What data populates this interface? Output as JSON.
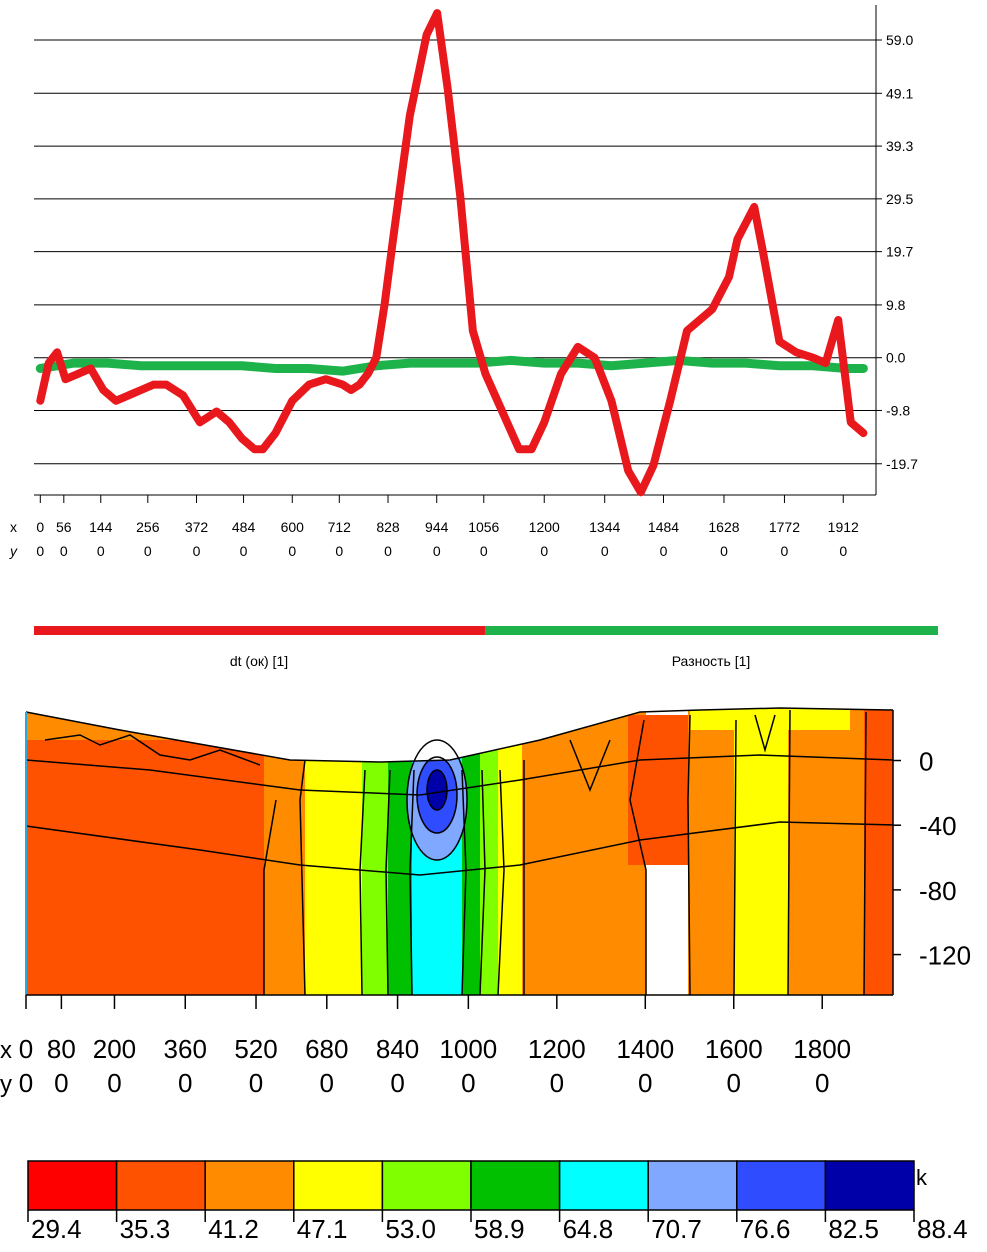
{
  "chart_data": [
    {
      "type": "line",
      "y_ticks": [
        "59.0",
        "49.1",
        "39.3",
        "29.5",
        "19.7",
        "9.8",
        "0.0",
        "-9.8",
        "-19.7"
      ],
      "ylim": [
        -25.5,
        65.5
      ],
      "xlim": [
        -15,
        1990
      ],
      "x_ticks": [
        {
          "x": "0",
          "y": "0"
        },
        {
          "x": "56",
          "y": "0"
        },
        {
          "x": "144",
          "y": "0"
        },
        {
          "x": "256",
          "y": "0"
        },
        {
          "x": "372",
          "y": "0"
        },
        {
          "x": "484",
          "y": "0"
        },
        {
          "x": "600",
          "y": "0"
        },
        {
          "x": "712",
          "y": "0"
        },
        {
          "x": "828",
          "y": "0"
        },
        {
          "x": "944",
          "y": "0"
        },
        {
          "x": "1056",
          "y": "0"
        },
        {
          "x": "1200",
          "y": "0"
        },
        {
          "x": "1344",
          "y": "0"
        },
        {
          "x": "1484",
          "y": "0"
        },
        {
          "x": "1628",
          "y": "0"
        },
        {
          "x": "1772",
          "y": "0"
        },
        {
          "x": "1912",
          "y": "0"
        }
      ],
      "x_prefix": "x",
      "y_prefix": "y",
      "grid": true,
      "series": [
        {
          "name": "dt (ок) [1]",
          "color": "#e8181c",
          "x": [
            0,
            20,
            40,
            60,
            90,
            120,
            150,
            180,
            210,
            240,
            270,
            300,
            340,
            380,
            420,
            450,
            480,
            510,
            530,
            560,
            600,
            640,
            680,
            720,
            740,
            760,
            780,
            800,
            820,
            840,
            880,
            920,
            945,
            970,
            1000,
            1030,
            1060,
            1100,
            1140,
            1170,
            1200,
            1240,
            1280,
            1320,
            1360,
            1400,
            1430,
            1460,
            1500,
            1540,
            1570,
            1600,
            1640,
            1660,
            1700,
            1720,
            1760,
            1800,
            1840,
            1870,
            1900,
            1930,
            1960
          ],
          "y": [
            -8,
            -1,
            1,
            -4,
            -3,
            -2,
            -6,
            -8,
            -7,
            -6,
            -5,
            -5,
            -7,
            -12,
            -10,
            -12,
            -15,
            -17,
            -17,
            -14,
            -8,
            -5,
            -4,
            -5,
            -6,
            -5,
            -3,
            0,
            10,
            22,
            45,
            60,
            64,
            50,
            30,
            5,
            -3,
            -10,
            -17,
            -17,
            -12,
            -3,
            2,
            0,
            -8,
            -21,
            -25,
            -20,
            -8,
            5,
            7,
            9,
            15,
            22,
            28,
            20,
            3,
            1,
            0,
            -1,
            7,
            -12,
            -14
          ]
        },
        {
          "name": "Разность [1]",
          "color": "#1db34a",
          "x": [
            0,
            40,
            80,
            160,
            240,
            320,
            400,
            480,
            560,
            640,
            720,
            800,
            880,
            960,
            1040,
            1120,
            1200,
            1280,
            1360,
            1440,
            1520,
            1600,
            1680,
            1760,
            1840,
            1920,
            1960
          ],
          "y": [
            -2,
            -1.5,
            -1,
            -1,
            -1.5,
            -1.5,
            -1.5,
            -1.5,
            -2,
            -2,
            -2.5,
            -1.5,
            -1,
            -1,
            -1,
            -0.5,
            -1,
            -1,
            -1.5,
            -1,
            -0.5,
            -1,
            -1,
            -1.5,
            -1.5,
            -2,
            -2
          ]
        }
      ]
    },
    {
      "type": "heatmap",
      "y_ticks": [
        "0",
        "-40",
        "-80",
        "-120"
      ],
      "ylim": [
        -145,
        30
      ],
      "xlim": [
        0,
        1960
      ],
      "x_ticks": [
        {
          "x": "0",
          "y": "0"
        },
        {
          "x": "80",
          "y": "0"
        },
        {
          "x": "200",
          "y": "0"
        },
        {
          "x": "360",
          "y": "0"
        },
        {
          "x": "520",
          "y": "0"
        },
        {
          "x": "680",
          "y": "0"
        },
        {
          "x": "840",
          "y": "0"
        },
        {
          "x": "1000",
          "y": "0"
        },
        {
          "x": "1200",
          "y": "0"
        },
        {
          "x": "1400",
          "y": "0"
        },
        {
          "x": "1600",
          "y": "0"
        },
        {
          "x": "1800",
          "y": "0"
        }
      ],
      "x_prefix": "x",
      "y_prefix": "y",
      "colorbar": {
        "unit": "k",
        "labels": [
          "29.4",
          "35.3",
          "41.2",
          "47.1",
          "53.0",
          "58.9",
          "64.8",
          "70.7",
          "76.6",
          "82.5",
          "88.4"
        ],
        "colors": [
          "#ff0000",
          "#fe5200",
          "#ff8c00",
          "#ffff00",
          "#80ff00",
          "#00c000",
          "#00ffff",
          "#80a8ff",
          "#2f4cff",
          "#0000a8"
        ]
      }
    }
  ]
}
